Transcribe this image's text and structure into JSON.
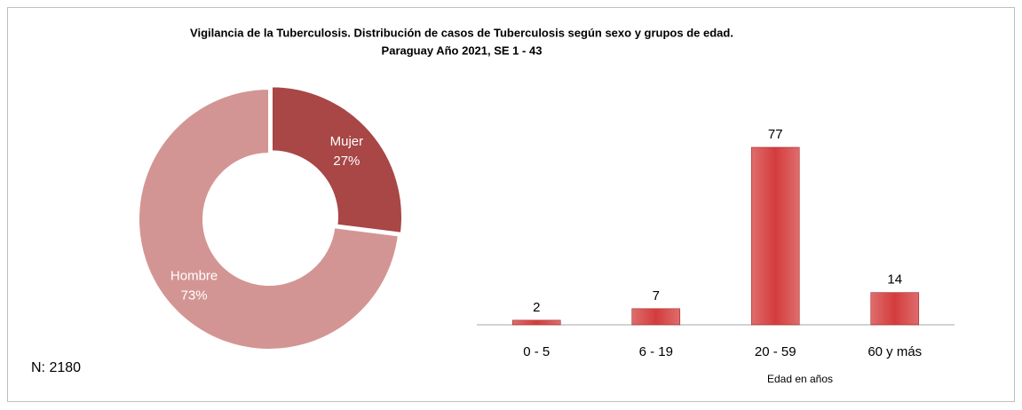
{
  "title": [
    "Vigilancia de la Tuberculosis. Distribución de casos de Tuberculosis según sexo y grupos de edad.",
    "Paraguay Año 2021, SE 1 - 43"
  ],
  "note": "N: 2180",
  "chart_data": [
    {
      "type": "donut",
      "categories": [
        "Mujer",
        "Hombre"
      ],
      "values": [
        27,
        73
      ],
      "value_labels": [
        "27%",
        "73%"
      ],
      "colors": [
        "#a94646",
        "#d39593"
      ]
    },
    {
      "type": "bar",
      "categories": [
        "0 - 5",
        "6 - 19",
        "20 - 59",
        "60 y más"
      ],
      "values": [
        2,
        7,
        77,
        14
      ],
      "color": "#d43c3c",
      "xlabel": "Edad en años"
    }
  ]
}
